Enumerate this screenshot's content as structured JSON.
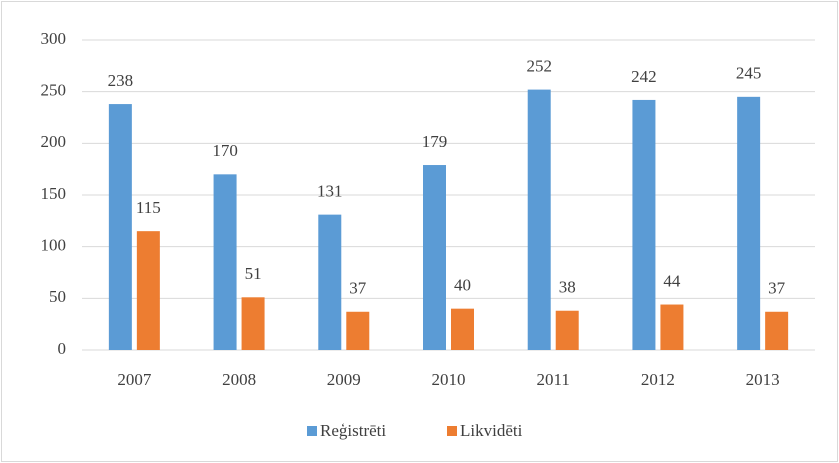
{
  "chart_data": {
    "type": "bar",
    "categories": [
      "2007",
      "2008",
      "2009",
      "2010",
      "2011",
      "2012",
      "2013"
    ],
    "series": [
      {
        "name": "Reģistrēti",
        "color": "#5b9bd5",
        "values": [
          238,
          170,
          131,
          179,
          252,
          242,
          245
        ]
      },
      {
        "name": "Likvidēti",
        "color": "#ed7d31",
        "values": [
          115,
          51,
          37,
          40,
          38,
          44,
          37
        ]
      }
    ],
    "ylim": [
      0,
      300
    ],
    "yticks": [
      0,
      50,
      100,
      150,
      200,
      250,
      300
    ],
    "grid": true,
    "legend": "bottom"
  }
}
